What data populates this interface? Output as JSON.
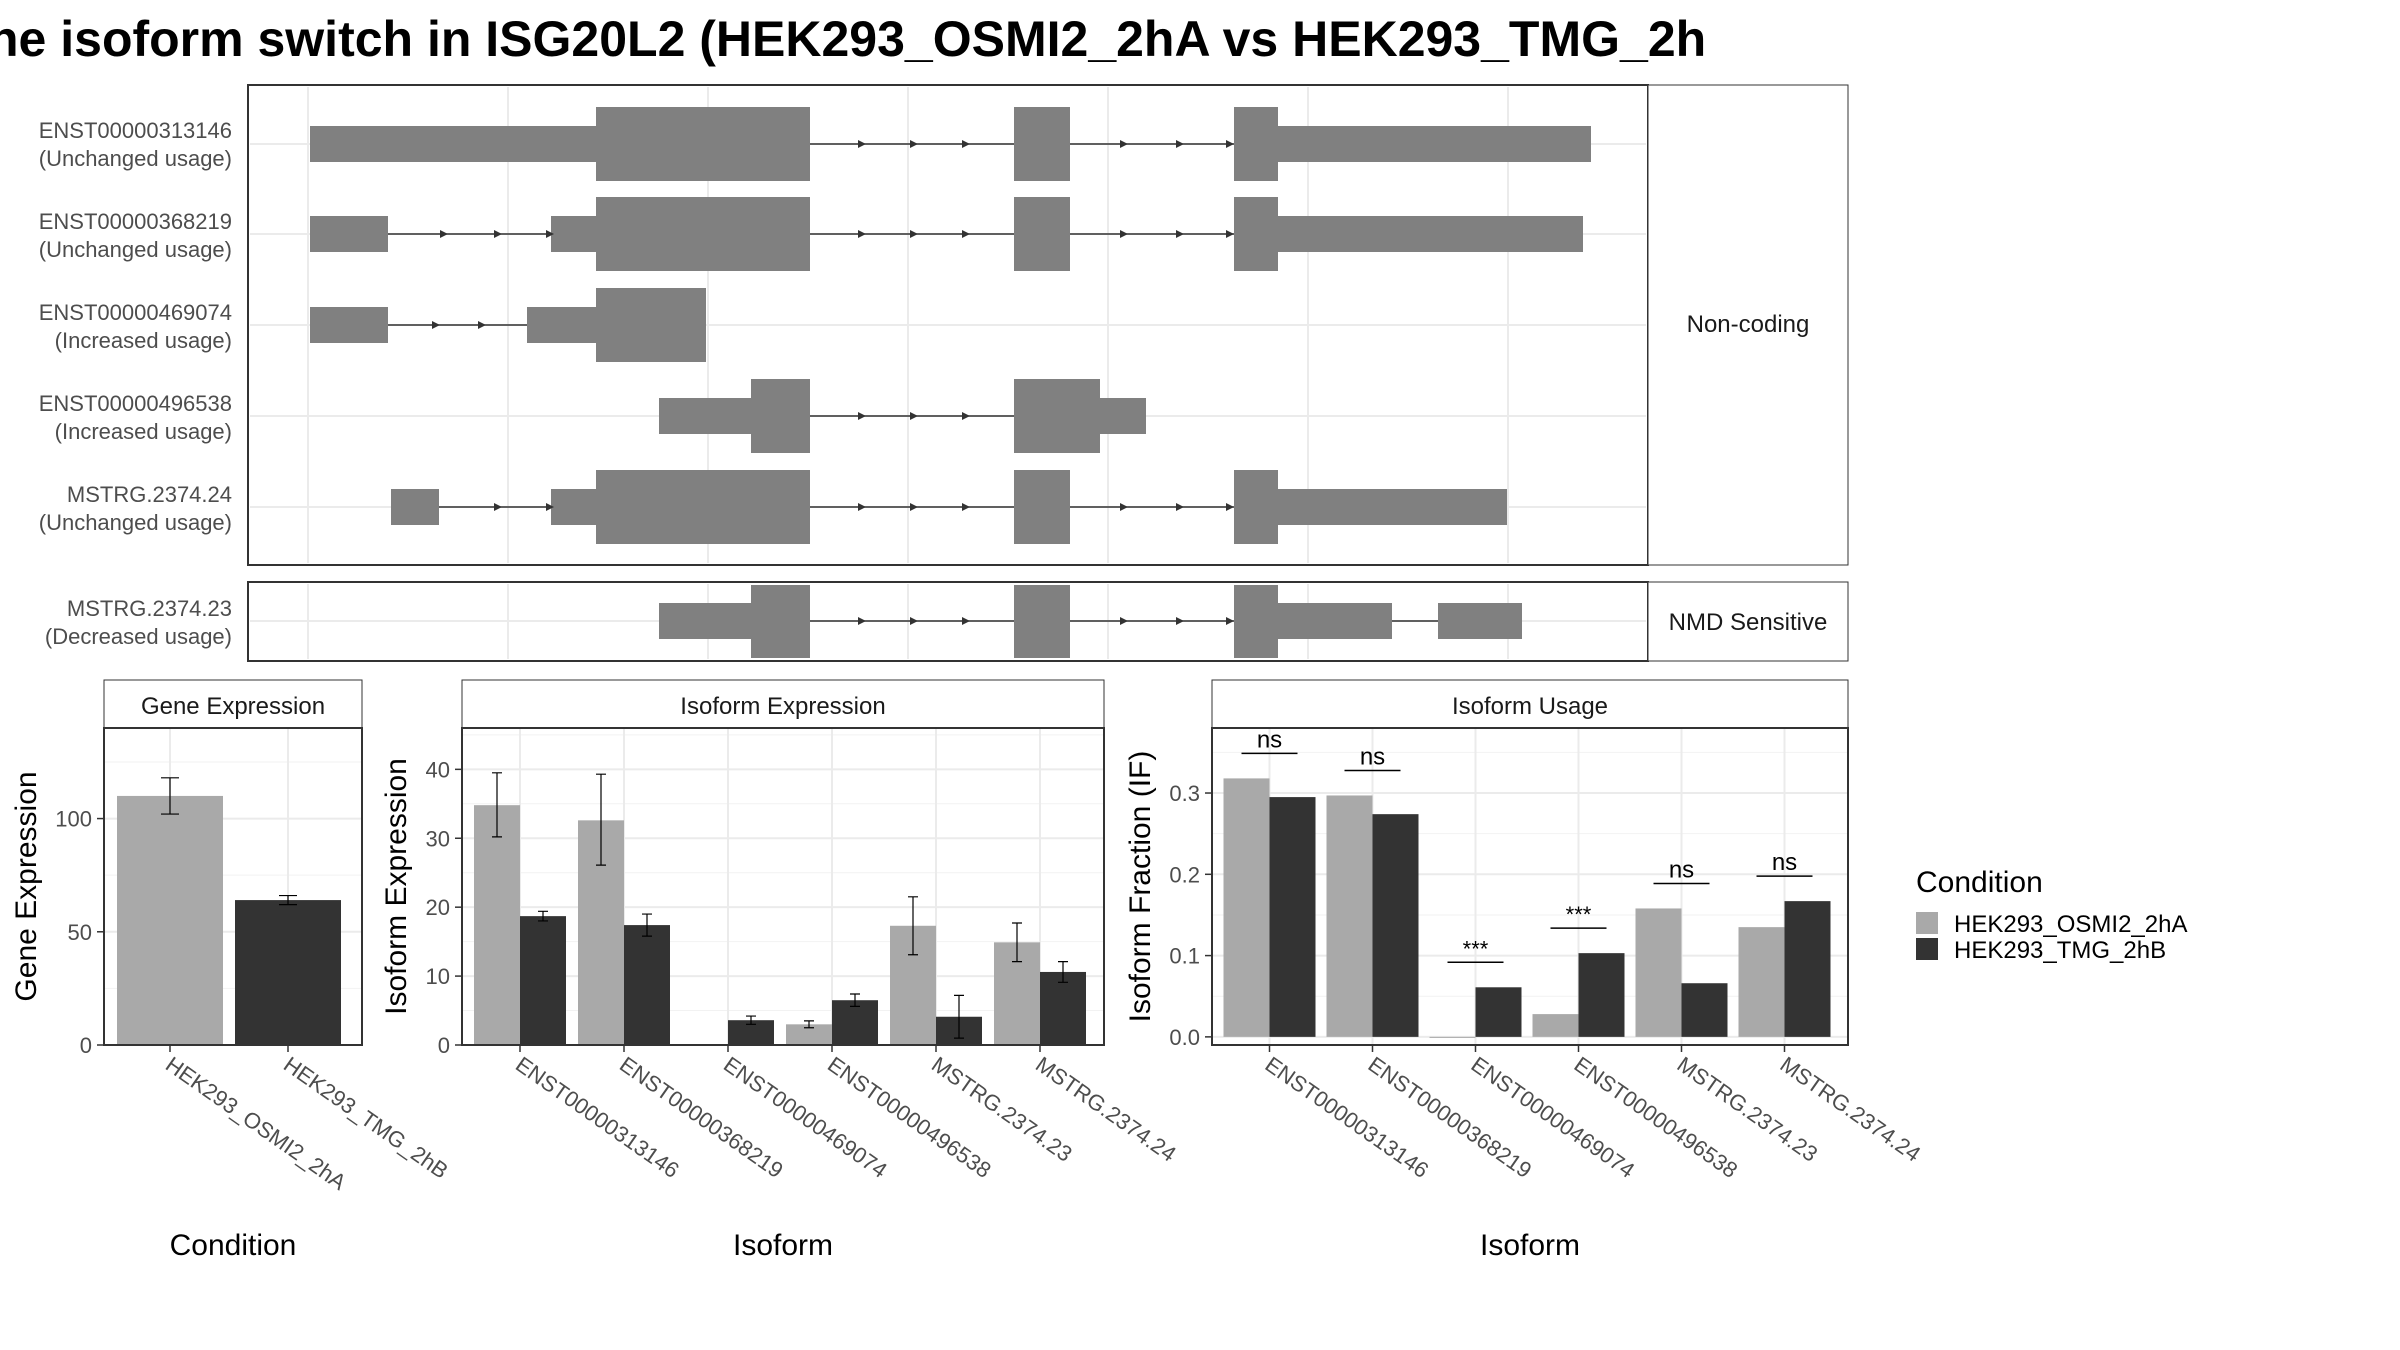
{
  "title": "he isoform switch in ISG20L2 (HEK293_OSMI2_2hA vs HEK293_TMG_2h",
  "colors": {
    "exon": "#808080",
    "cond1": "#A9A9A9",
    "cond2": "#333333",
    "grid": "#EBEBEB",
    "frame": "#333333",
    "strip": "#FFFFFF"
  },
  "structure": {
    "groups": [
      {
        "label": "Non-coding",
        "transcripts": [
          {
            "id": "ENST00000313146",
            "usage": "(Unchanged usage)"
          },
          {
            "id": "ENST00000368219",
            "usage": "(Unchanged usage)"
          },
          {
            "id": "ENST00000469074",
            "usage": "(Increased usage)"
          },
          {
            "id": "ENST00000496538",
            "usage": "(Increased usage)"
          },
          {
            "id": "MSTRG.2374.24",
            "usage": "(Unchanged usage)"
          }
        ]
      },
      {
        "label": "NMD Sensitive",
        "transcripts": [
          {
            "id": "MSTRG.2374.23",
            "usage": "(Decreased usage)"
          }
        ]
      }
    ]
  },
  "legend": {
    "title": "Condition",
    "items": [
      "HEK293_OSMI2_2hA",
      "HEK293_TMG_2hB"
    ]
  },
  "chart_data": [
    {
      "type": "bar",
      "title": "Gene Expression",
      "xlabel": "Condition",
      "ylabel": "Gene Expression",
      "categories": [
        "HEK293_OSMI2_2hA",
        "HEK293_TMG_2hB"
      ],
      "values": [
        110,
        64
      ],
      "errors": [
        [
          102,
          118
        ],
        [
          62,
          66
        ]
      ],
      "ylim": [
        0,
        140
      ],
      "yticks": [
        0,
        50,
        100
      ],
      "grid": true
    },
    {
      "type": "bar",
      "title": "Isoform Expression",
      "xlabel": "Isoform",
      "ylabel": "Isoform Expression",
      "categories": [
        "ENST00000313146",
        "ENST00000368219",
        "ENST00000469074",
        "ENST00000496538",
        "MSTRG.2374.23",
        "MSTRG.2374.24"
      ],
      "series": [
        {
          "name": "HEK293_OSMI2_2hA",
          "values": [
            34.8,
            32.6,
            0,
            3.0,
            17.3,
            14.9
          ],
          "errors": [
            [
              30.2,
              39.5
            ],
            [
              26.1,
              39.3
            ],
            [
              0,
              0
            ],
            [
              2.5,
              3.5
            ],
            [
              13.1,
              21.5
            ],
            [
              12.1,
              17.7
            ]
          ]
        },
        {
          "name": "HEK293_TMG_2hB",
          "values": [
            18.7,
            17.4,
            3.6,
            6.5,
            4.1,
            10.6
          ],
          "errors": [
            [
              18.0,
              19.4
            ],
            [
              15.8,
              19.0
            ],
            [
              3.0,
              4.2
            ],
            [
              5.6,
              7.4
            ],
            [
              1.0,
              7.2
            ],
            [
              9.1,
              12.1
            ]
          ]
        }
      ],
      "ylim": [
        0,
        46
      ],
      "yticks": [
        0,
        10,
        20,
        30,
        40
      ],
      "grid": true
    },
    {
      "type": "bar",
      "title": "Isoform Usage",
      "xlabel": "Isoform",
      "ylabel": "Isoform Fraction (IF)",
      "categories": [
        "ENST00000313146",
        "ENST00000368219",
        "ENST00000469074",
        "ENST00000496538",
        "MSTRG.2374.23",
        "MSTRG.2374.24"
      ],
      "series": [
        {
          "name": "HEK293_OSMI2_2hA",
          "values": [
            0.318,
            0.297,
            0.0,
            0.028,
            0.158,
            0.135
          ]
        },
        {
          "name": "HEK293_TMG_2hB",
          "values": [
            0.295,
            0.274,
            0.061,
            0.103,
            0.066,
            0.167
          ]
        }
      ],
      "significance": [
        "ns",
        "ns",
        "***",
        "***",
        "ns",
        "ns"
      ],
      "ylim": [
        -0.01,
        0.38
      ],
      "yticks": [
        0.0,
        0.1,
        0.2,
        0.3
      ],
      "grid": true
    }
  ]
}
